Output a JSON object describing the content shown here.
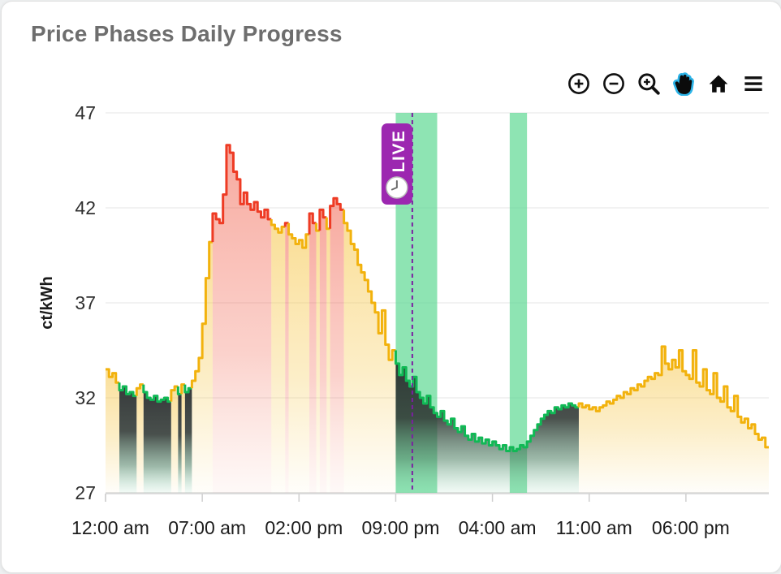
{
  "page": {
    "background": "#eef0f1",
    "card_background": "#ffffff"
  },
  "header": {
    "title": "Price Phases Daily Progress"
  },
  "toolbar": {
    "accent_color": "#2db4e8",
    "active_tool": "pan",
    "buttons": [
      {
        "name": "zoom-in-icon",
        "active": false
      },
      {
        "name": "zoom-out-icon",
        "active": false
      },
      {
        "name": "box-zoom-icon",
        "active": false
      },
      {
        "name": "pan-icon",
        "active": true
      },
      {
        "name": "home-icon",
        "active": false
      },
      {
        "name": "menu-icon",
        "active": false
      }
    ]
  },
  "chart_data": {
    "type": "area",
    "subtype": "step-area-phases",
    "title": "Price Phases Daily Progress",
    "xlabel": "",
    "ylabel": "ct/kWh",
    "ylim": [
      27,
      47
    ],
    "y_ticks": [
      27,
      32,
      37,
      42,
      47
    ],
    "xlim_hours": [
      0,
      48
    ],
    "x_ticks": [
      {
        "t": 0,
        "label": "12:00 am"
      },
      {
        "t": 7,
        "label": "07:00 am"
      },
      {
        "t": 14,
        "label": "02:00 pm"
      },
      {
        "t": 21,
        "label": "09:00 pm"
      },
      {
        "t": 28,
        "label": "04:00 am"
      },
      {
        "t": 35,
        "label": "11:00 am"
      },
      {
        "t": 42,
        "label": "06:00 pm"
      }
    ],
    "grid": true,
    "legend_position": "none",
    "step_hours": 0.25,
    "start_hour": 0,
    "values": [
      33.5,
      33.1,
      33.3,
      32.8,
      32.4,
      32.6,
      32.2,
      32.3,
      32.1,
      32.5,
      32.7,
      32.3,
      32.0,
      31.9,
      32.1,
      31.8,
      31.9,
      32.0,
      31.8,
      32.4,
      32.6,
      32.2,
      32.7,
      32.3,
      32.5,
      32.9,
      33.4,
      34.1,
      35.9,
      38.3,
      40.2,
      41.7,
      41.4,
      41.2,
      42.7,
      45.3,
      44.9,
      43.9,
      43.5,
      42.2,
      42.8,
      42.2,
      41.9,
      42.3,
      41.8,
      41.5,
      41.9,
      41.4,
      41.1,
      40.9,
      40.7,
      41.0,
      41.2,
      40.6,
      40.4,
      40.1,
      40.3,
      39.9,
      40.6,
      41.7,
      41.2,
      40.8,
      41.9,
      41.5,
      40.9,
      42.1,
      42.5,
      42.2,
      41.9,
      41.2,
      40.8,
      40.1,
      39.8,
      39.0,
      38.6,
      38.2,
      37.6,
      37.0,
      36.5,
      35.4,
      36.6,
      34.8,
      34.0,
      34.5,
      33.8,
      33.2,
      33.6,
      32.9,
      32.6,
      33.1,
      32.3,
      32.0,
      31.7,
      32.1,
      31.5,
      31.2,
      31.0,
      31.3,
      30.8,
      30.6,
      30.9,
      30.4,
      30.2,
      30.5,
      30.0,
      29.8,
      30.1,
      29.7,
      29.9,
      29.6,
      29.8,
      29.5,
      29.7,
      29.5,
      29.3,
      29.5,
      29.2,
      29.4,
      29.2,
      29.3,
      29.5,
      29.4,
      29.7,
      30.0,
      30.3,
      30.6,
      30.9,
      31.1,
      31.3,
      31.2,
      31.5,
      31.4,
      31.6,
      31.5,
      31.7,
      31.6,
      31.5,
      31.7,
      31.5,
      31.6,
      31.4,
      31.5,
      31.3,
      31.5,
      31.6,
      31.8,
      31.7,
      31.9,
      32.1,
      32.0,
      32.3,
      32.2,
      32.5,
      32.4,
      32.7,
      32.6,
      32.9,
      33.1,
      33.0,
      33.3,
      33.2,
      34.7,
      33.8,
      33.5,
      34.0,
      33.6,
      34.5,
      33.4,
      33.2,
      33.0,
      34.5,
      32.8,
      32.6,
      33.5,
      32.4,
      32.2,
      33.3,
      32.0,
      31.8,
      32.6,
      31.5,
      31.3,
      32.1,
      31.0,
      30.7,
      30.9,
      30.4,
      30.6,
      30.1,
      29.8,
      29.9,
      29.4
    ],
    "phase_segments": [
      {
        "start": 0,
        "end": 1,
        "phase": "normal"
      },
      {
        "start": 1,
        "end": 2.25,
        "phase": "cheap"
      },
      {
        "start": 2.25,
        "end": 2.75,
        "phase": "normal"
      },
      {
        "start": 2.75,
        "end": 4.75,
        "phase": "cheap"
      },
      {
        "start": 4.75,
        "end": 5.25,
        "phase": "normal"
      },
      {
        "start": 5.25,
        "end": 5.5,
        "phase": "cheap"
      },
      {
        "start": 5.5,
        "end": 5.75,
        "phase": "normal"
      },
      {
        "start": 5.75,
        "end": 6.25,
        "phase": "cheap"
      },
      {
        "start": 6.25,
        "end": 7.75,
        "phase": "normal"
      },
      {
        "start": 7.75,
        "end": 12,
        "phase": "expensive"
      },
      {
        "start": 12,
        "end": 13,
        "phase": "normal"
      },
      {
        "start": 13,
        "end": 13.25,
        "phase": "expensive"
      },
      {
        "start": 13.25,
        "end": 14.75,
        "phase": "normal"
      },
      {
        "start": 14.75,
        "end": 15.25,
        "phase": "expensive"
      },
      {
        "start": 15.25,
        "end": 15.5,
        "phase": "normal"
      },
      {
        "start": 15.5,
        "end": 16,
        "phase": "expensive"
      },
      {
        "start": 16,
        "end": 16.25,
        "phase": "normal"
      },
      {
        "start": 16.25,
        "end": 17.25,
        "phase": "expensive"
      },
      {
        "start": 17.25,
        "end": 21,
        "phase": "normal"
      },
      {
        "start": 21,
        "end": 34.25,
        "phase": "cheap"
      },
      {
        "start": 34.25,
        "end": 48,
        "phase": "normal"
      }
    ],
    "phase_colors": {
      "normal": "#f2b20d",
      "expensive": "#ee3b24",
      "cheap": "#10b955"
    },
    "bands": [
      {
        "start": 21,
        "end": 24
      },
      {
        "start": 29.25,
        "end": 30.5
      }
    ],
    "band_color": "#62d996",
    "live_marker": {
      "t": 22.2,
      "label": "LIVE",
      "badge_color": "#9c27b0",
      "line_color": "#7b1fa2"
    }
  }
}
